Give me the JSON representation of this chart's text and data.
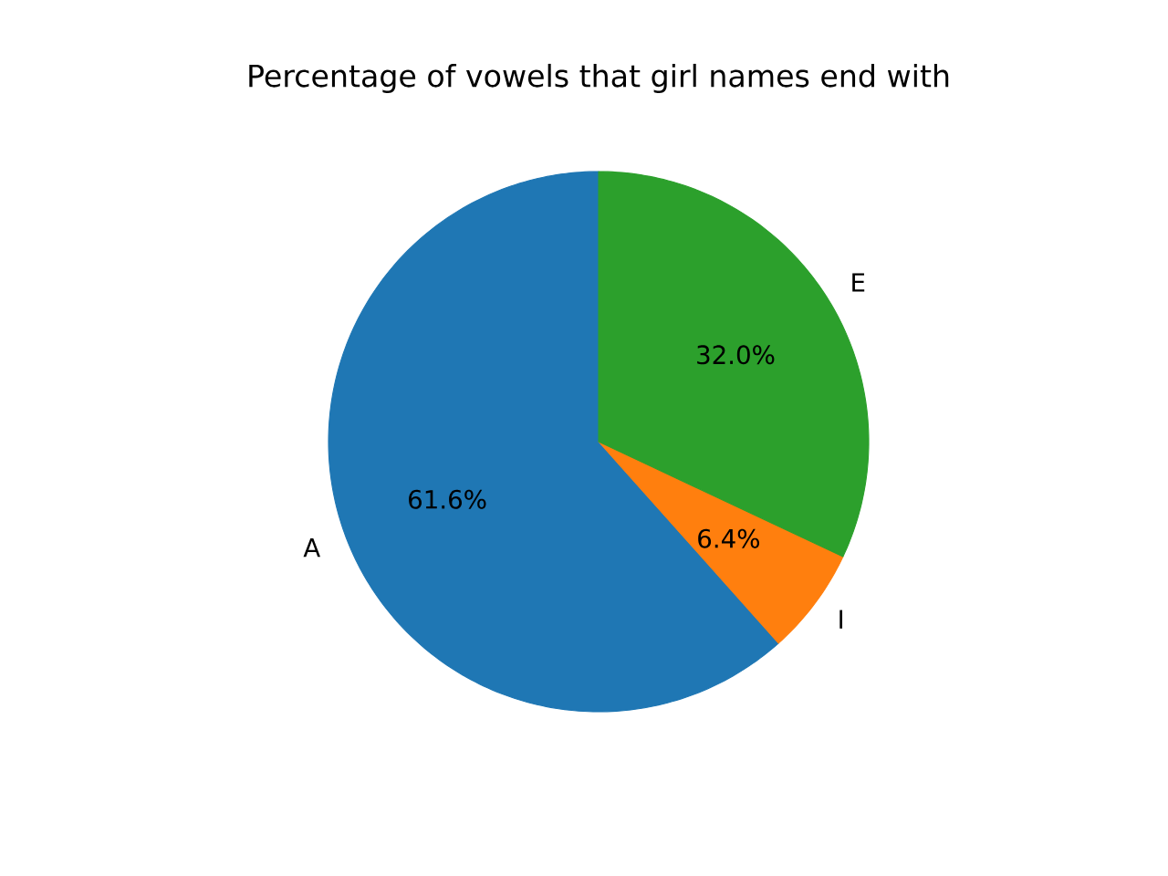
{
  "chart_data": {
    "type": "pie",
    "title": "Percentage of vowels that girl names end with",
    "categories": [
      "A",
      "I",
      "E"
    ],
    "values": [
      61.6,
      6.4,
      32.0
    ],
    "colors": [
      "#1f77b4",
      "#ff7f0e",
      "#2ca02c"
    ],
    "value_labels": [
      "61.6%",
      "6.4%",
      "32.0%"
    ]
  }
}
